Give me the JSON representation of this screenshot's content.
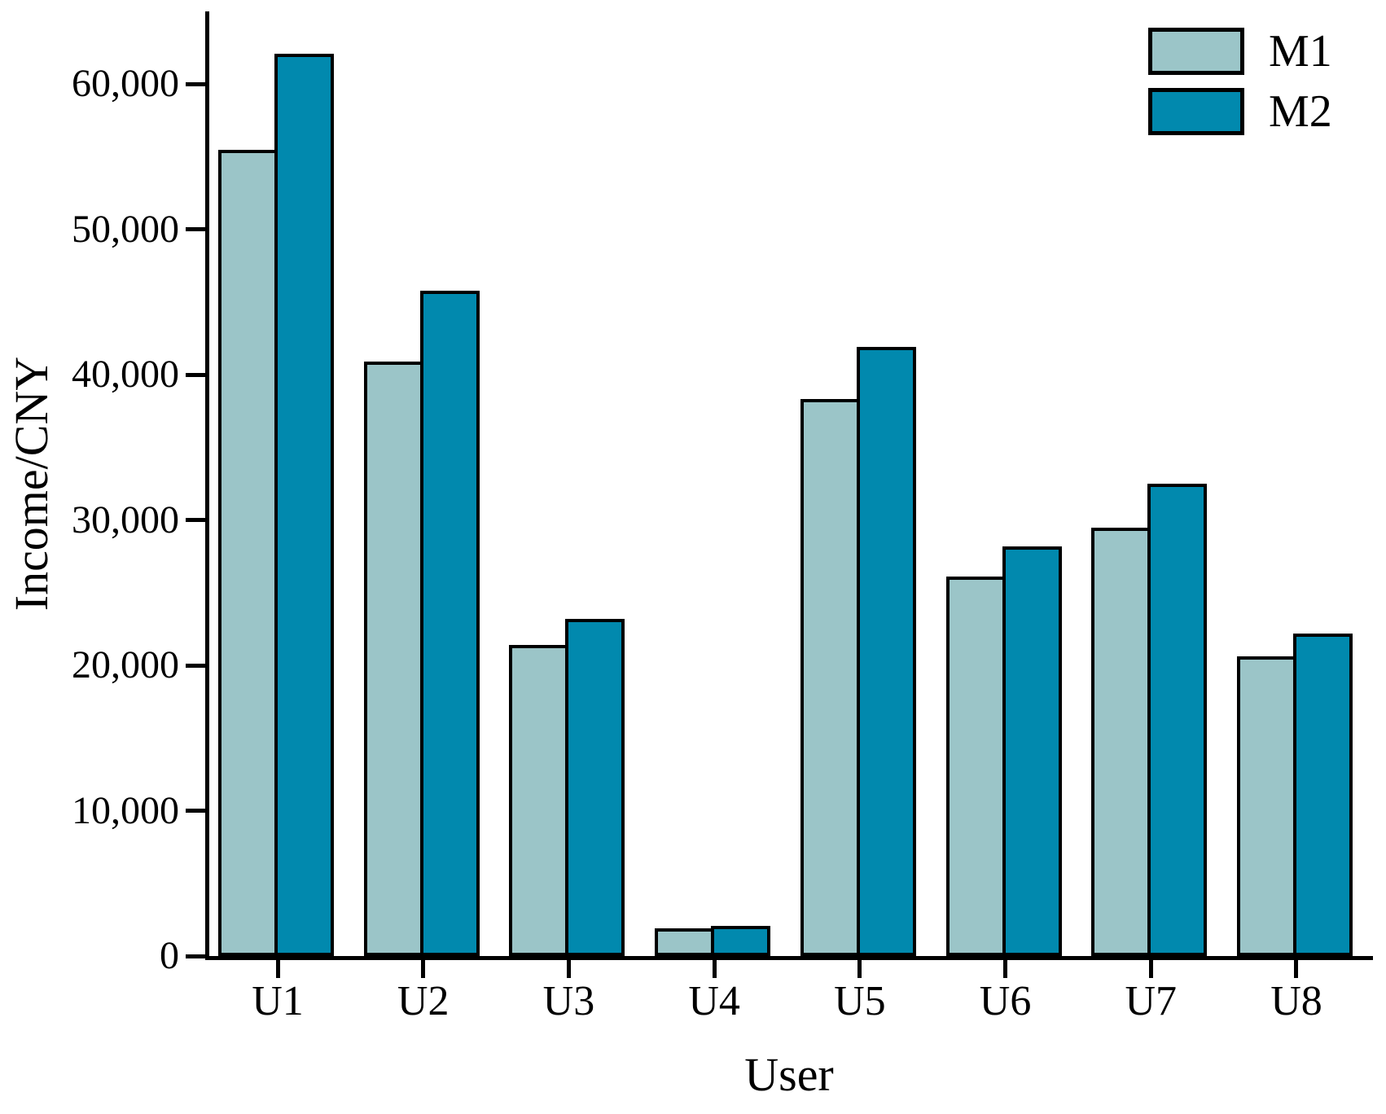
{
  "chart_data": {
    "type": "bar",
    "title": "",
    "xlabel": "User",
    "ylabel": "Income/CNY",
    "categories": [
      "U1",
      "U2",
      "U3",
      "U4",
      "U5",
      "U6",
      "U7",
      "U8"
    ],
    "series": [
      {
        "name": "M1",
        "color": "#9BC5C8",
        "values": [
          55500,
          40900,
          21400,
          1900,
          38300,
          26100,
          29500,
          20600
        ]
      },
      {
        "name": "M2",
        "color": "#0189AE",
        "values": [
          62100,
          45800,
          23200,
          2100,
          41900,
          28200,
          32500,
          22200
        ]
      }
    ],
    "ylim": [
      0,
      65000
    ],
    "yticks": [
      0,
      10000,
      20000,
      30000,
      40000,
      50000,
      60000
    ],
    "ytick_labels": [
      "0",
      "10,000",
      "20,000",
      "30,000",
      "40,000",
      "50,000",
      "60,000"
    ],
    "legend_position": "top-right",
    "grid": false,
    "bar_border_color": "#000000",
    "axis_color": "#000000",
    "background": "#FFFFFF"
  }
}
